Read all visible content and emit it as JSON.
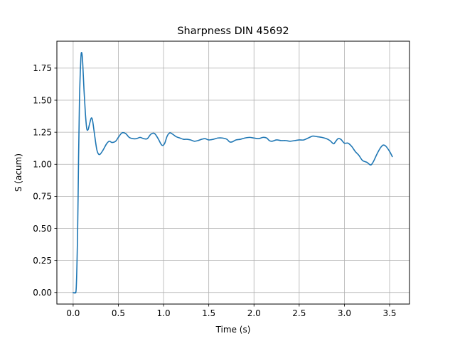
{
  "chart_data": {
    "type": "line",
    "title": "Sharpness DIN 45692",
    "xlabel": "Time (s)",
    "ylabel": "S (acum)",
    "xlim": [
      -0.18,
      3.72
    ],
    "ylim": [
      -0.09,
      1.96
    ],
    "xticks": [
      0.0,
      0.5,
      1.0,
      1.5,
      2.0,
      2.5,
      3.0,
      3.5
    ],
    "xtick_labels": [
      "0.0",
      "0.5",
      "1.0",
      "1.5",
      "2.0",
      "2.5",
      "3.0",
      "3.5"
    ],
    "yticks": [
      0.0,
      0.25,
      0.5,
      0.75,
      1.0,
      1.25,
      1.5,
      1.75
    ],
    "ytick_labels": [
      "0.00",
      "0.25",
      "0.50",
      "0.75",
      "1.00",
      "1.25",
      "1.50",
      "1.75"
    ],
    "grid": true,
    "line_color": "#1f77b4",
    "series": [
      {
        "points": [
          [
            0.0,
            0.0
          ],
          [
            0.02,
            0.0
          ],
          [
            0.035,
            0.05
          ],
          [
            0.05,
            0.5
          ],
          [
            0.06,
            1.05
          ],
          [
            0.07,
            1.5
          ],
          [
            0.085,
            1.82
          ],
          [
            0.095,
            1.87
          ],
          [
            0.105,
            1.8
          ],
          [
            0.12,
            1.58
          ],
          [
            0.135,
            1.4
          ],
          [
            0.15,
            1.28
          ],
          [
            0.165,
            1.27
          ],
          [
            0.18,
            1.31
          ],
          [
            0.2,
            1.36
          ],
          [
            0.215,
            1.34
          ],
          [
            0.235,
            1.24
          ],
          [
            0.26,
            1.12
          ],
          [
            0.28,
            1.08
          ],
          [
            0.3,
            1.08
          ],
          [
            0.33,
            1.11
          ],
          [
            0.37,
            1.16
          ],
          [
            0.4,
            1.18
          ],
          [
            0.43,
            1.17
          ],
          [
            0.47,
            1.18
          ],
          [
            0.5,
            1.21
          ],
          [
            0.54,
            1.245
          ],
          [
            0.58,
            1.24
          ],
          [
            0.62,
            1.21
          ],
          [
            0.66,
            1.2
          ],
          [
            0.7,
            1.2
          ],
          [
            0.74,
            1.21
          ],
          [
            0.78,
            1.2
          ],
          [
            0.82,
            1.2
          ],
          [
            0.86,
            1.235
          ],
          [
            0.9,
            1.24
          ],
          [
            0.94,
            1.2
          ],
          [
            0.98,
            1.15
          ],
          [
            1.01,
            1.16
          ],
          [
            1.04,
            1.22
          ],
          [
            1.07,
            1.245
          ],
          [
            1.1,
            1.235
          ],
          [
            1.14,
            1.215
          ],
          [
            1.18,
            1.205
          ],
          [
            1.22,
            1.195
          ],
          [
            1.26,
            1.195
          ],
          [
            1.3,
            1.19
          ],
          [
            1.34,
            1.18
          ],
          [
            1.38,
            1.185
          ],
          [
            1.42,
            1.195
          ],
          [
            1.46,
            1.2
          ],
          [
            1.5,
            1.19
          ],
          [
            1.55,
            1.195
          ],
          [
            1.6,
            1.205
          ],
          [
            1.65,
            1.205
          ],
          [
            1.7,
            1.195
          ],
          [
            1.73,
            1.175
          ],
          [
            1.76,
            1.175
          ],
          [
            1.8,
            1.19
          ],
          [
            1.85,
            1.195
          ],
          [
            1.9,
            1.205
          ],
          [
            1.95,
            1.21
          ],
          [
            2.0,
            1.205
          ],
          [
            2.05,
            1.2
          ],
          [
            2.1,
            1.21
          ],
          [
            2.14,
            1.205
          ],
          [
            2.17,
            1.185
          ],
          [
            2.2,
            1.18
          ],
          [
            2.25,
            1.19
          ],
          [
            2.3,
            1.185
          ],
          [
            2.35,
            1.185
          ],
          [
            2.4,
            1.18
          ],
          [
            2.45,
            1.185
          ],
          [
            2.5,
            1.19
          ],
          [
            2.55,
            1.19
          ],
          [
            2.6,
            1.205
          ],
          [
            2.65,
            1.22
          ],
          [
            2.7,
            1.215
          ],
          [
            2.75,
            1.21
          ],
          [
            2.8,
            1.2
          ],
          [
            2.84,
            1.185
          ],
          [
            2.88,
            1.16
          ],
          [
            2.9,
            1.175
          ],
          [
            2.93,
            1.2
          ],
          [
            2.96,
            1.195
          ],
          [
            3.0,
            1.165
          ],
          [
            3.04,
            1.165
          ],
          [
            3.08,
            1.14
          ],
          [
            3.12,
            1.1
          ],
          [
            3.16,
            1.07
          ],
          [
            3.2,
            1.03
          ],
          [
            3.25,
            1.015
          ],
          [
            3.29,
            0.995
          ],
          [
            3.32,
            1.02
          ],
          [
            3.36,
            1.08
          ],
          [
            3.4,
            1.13
          ],
          [
            3.43,
            1.15
          ],
          [
            3.46,
            1.14
          ],
          [
            3.5,
            1.1
          ],
          [
            3.53,
            1.06
          ]
        ]
      }
    ]
  }
}
